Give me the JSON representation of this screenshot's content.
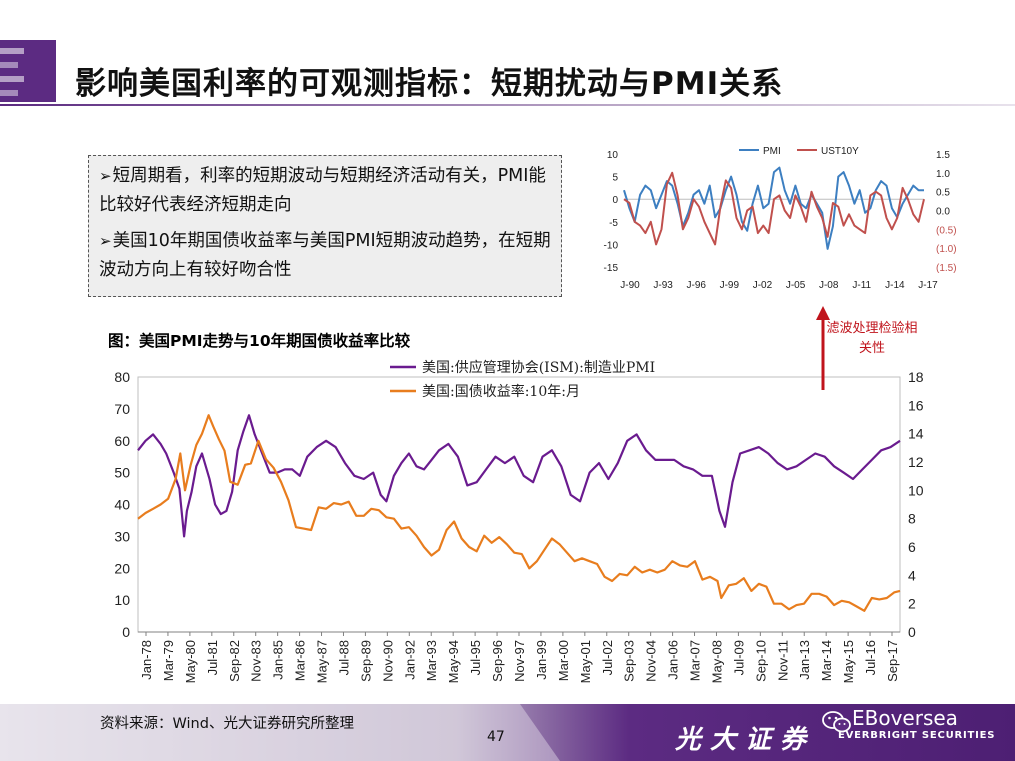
{
  "slide": {
    "title": "影响美国利率的可观测指标：短期扰动与PMI关系",
    "page_number": "47",
    "source": "资料来源：Wind、光大证券研究所整理"
  },
  "bullets": [
    "短周期看，利率的短期波动与短期经济活动有关，PMI能比较好代表经济短期走向",
    "美国10年期国债收益率与美国PMI短期波动趋势，在短期波动方向上有较好吻合性"
  ],
  "bullet_marker": "➢",
  "annotation": {
    "text": "滤波处理检验相关性",
    "color": "#c0141c"
  },
  "branding": {
    "cn_name": "光大证券",
    "en_name": "EBoversea",
    "en_sub": "EVERBRIGHT SECURITIES"
  },
  "colors": {
    "purple": "#6a1b8f",
    "orange": "#e87d1e",
    "blue": "#3d7fc1",
    "red": "#c0504d",
    "footer": "#5c2b82"
  },
  "chart_data": [
    {
      "id": "main",
      "type": "line",
      "title": "图：美国PMI走势与10年期国债收益率比较",
      "x_ticks": [
        "Jan-78",
        "Mar-79",
        "May-80",
        "Jul-81",
        "Sep-82",
        "Nov-83",
        "Jan-85",
        "Mar-86",
        "May-87",
        "Jul-88",
        "Sep-89",
        "Nov-90",
        "Jan-92",
        "Mar-93",
        "May-94",
        "Jul-95",
        "Sep-96",
        "Nov-97",
        "Jan-99",
        "Mar-00",
        "May-01",
        "Jul-02",
        "Sep-03",
        "Nov-04",
        "Jan-06",
        "Mar-07",
        "May-08",
        "Jul-09",
        "Sep-10",
        "Nov-11",
        "Jan-13",
        "Mar-14",
        "May-15",
        "Jul-16",
        "Sep-17"
      ],
      "x_range": [
        1978.0,
        2018.5
      ],
      "y_left": {
        "ticks": [
          0,
          10,
          20,
          30,
          40,
          50,
          60,
          70,
          80
        ],
        "ylim": [
          0,
          80
        ]
      },
      "y_right": {
        "ticks": [
          0,
          2,
          4,
          6,
          8,
          10,
          12,
          14,
          16,
          18
        ],
        "ylim": [
          0,
          18
        ]
      },
      "series": [
        {
          "name": "美国:供应管理协会(ISM):制造业PMI",
          "axis": "left",
          "x": [
            1978.0,
            1978.4,
            1978.8,
            1979.2,
            1979.5,
            1979.9,
            1980.2,
            1980.45,
            1980.6,
            1980.85,
            1981.1,
            1981.4,
            1981.8,
            1982.1,
            1982.4,
            1982.7,
            1983.0,
            1983.3,
            1983.6,
            1983.9,
            1984.2,
            1984.6,
            1985.0,
            1985.4,
            1985.8,
            1986.2,
            1986.6,
            1987.0,
            1987.5,
            1988.0,
            1988.5,
            1989.0,
            1989.5,
            1990.0,
            1990.5,
            1990.9,
            1991.2,
            1991.6,
            1992.0,
            1992.4,
            1992.8,
            1993.2,
            1993.6,
            1994.0,
            1994.5,
            1995.0,
            1995.5,
            1996.0,
            1996.5,
            1997.0,
            1997.5,
            1998.0,
            1998.5,
            1999.0,
            1999.5,
            2000.0,
            2000.5,
            2001.0,
            2001.5,
            2002.0,
            2002.5,
            2003.0,
            2003.5,
            2004.0,
            2004.5,
            2005.0,
            2005.5,
            2006.0,
            2006.5,
            2007.0,
            2007.5,
            2008.0,
            2008.5,
            2008.9,
            2009.2,
            2009.6,
            2010.0,
            2010.5,
            2011.0,
            2011.5,
            2012.0,
            2012.5,
            2013.0,
            2013.5,
            2014.0,
            2014.5,
            2015.0,
            2015.5,
            2016.0,
            2016.5,
            2017.0,
            2017.5,
            2018.0,
            2018.5
          ],
          "y": [
            57,
            60,
            62,
            59,
            56,
            50,
            45,
            30,
            38,
            44,
            52,
            56,
            48,
            40,
            37,
            38,
            44,
            57,
            63,
            68,
            62,
            56,
            50,
            50,
            51,
            51,
            49,
            55,
            58,
            60,
            58,
            53,
            49,
            48,
            50,
            43,
            41,
            49,
            53,
            56,
            52,
            51,
            54,
            57,
            59,
            55,
            46,
            47,
            51,
            55,
            53,
            55,
            49,
            47,
            55,
            57,
            52,
            43,
            41,
            50,
            53,
            48,
            53,
            60,
            62,
            57,
            54,
            54,
            54,
            52,
            51,
            49,
            49,
            38,
            33,
            47,
            56,
            57,
            58,
            56,
            53,
            51,
            52,
            54,
            56,
            55,
            52,
            50,
            48,
            51,
            54,
            57,
            58,
            60
          ]
        },
        {
          "name": "美国:国债收益率:10年:月",
          "axis": "right",
          "x": [
            1978.0,
            1978.4,
            1978.8,
            1979.2,
            1979.6,
            1980.0,
            1980.25,
            1980.5,
            1980.8,
            1981.1,
            1981.4,
            1981.75,
            1982.0,
            1982.3,
            1982.6,
            1982.9,
            1983.3,
            1983.7,
            1984.0,
            1984.4,
            1984.8,
            1985.2,
            1985.6,
            1986.0,
            1986.4,
            1986.8,
            1987.2,
            1987.6,
            1988.0,
            1988.4,
            1988.8,
            1989.2,
            1989.6,
            1990.0,
            1990.4,
            1990.8,
            1991.2,
            1991.6,
            1992.0,
            1992.4,
            1992.8,
            1993.2,
            1993.6,
            1994.0,
            1994.4,
            1994.8,
            1995.2,
            1995.6,
            1996.0,
            1996.4,
            1996.8,
            1997.2,
            1997.6,
            1998.0,
            1998.4,
            1998.8,
            1999.2,
            1999.6,
            2000.0,
            2000.4,
            2000.8,
            2001.2,
            2001.6,
            2002.0,
            2002.4,
            2002.8,
            2003.2,
            2003.6,
            2004.0,
            2004.4,
            2004.8,
            2005.2,
            2005.6,
            2006.0,
            2006.4,
            2006.8,
            2007.2,
            2007.6,
            2008.0,
            2008.4,
            2008.8,
            2009.0,
            2009.4,
            2009.8,
            2010.2,
            2010.6,
            2011.0,
            2011.4,
            2011.8,
            2012.2,
            2012.6,
            2013.0,
            2013.4,
            2013.8,
            2014.2,
            2014.6,
            2015.0,
            2015.4,
            2015.8,
            2016.2,
            2016.6,
            2017.0,
            2017.4,
            2017.8,
            2018.2,
            2018.5
          ],
          "y": [
            8.0,
            8.4,
            8.7,
            9.0,
            9.4,
            10.8,
            12.6,
            10.0,
            11.8,
            13.2,
            14.0,
            15.3,
            14.5,
            13.6,
            12.8,
            10.6,
            10.4,
            11.8,
            11.9,
            13.5,
            12.2,
            11.6,
            10.6,
            9.3,
            7.4,
            7.3,
            7.2,
            8.8,
            8.7,
            9.1,
            9.0,
            9.2,
            8.2,
            8.2,
            8.7,
            8.6,
            8.1,
            8.0,
            7.3,
            7.4,
            6.8,
            6.0,
            5.4,
            5.8,
            7.2,
            7.8,
            6.6,
            6.0,
            5.7,
            6.8,
            6.3,
            6.7,
            6.2,
            5.6,
            5.5,
            4.5,
            5.0,
            5.8,
            6.6,
            6.2,
            5.6,
            5.0,
            5.2,
            5.0,
            4.8,
            3.9,
            3.6,
            4.1,
            4.0,
            4.6,
            4.2,
            4.4,
            4.2,
            4.4,
            5.0,
            4.7,
            4.6,
            5.0,
            3.7,
            3.9,
            3.6,
            2.4,
            3.3,
            3.4,
            3.8,
            2.9,
            3.4,
            3.2,
            2.0,
            2.0,
            1.6,
            1.9,
            2.0,
            2.7,
            2.7,
            2.5,
            1.9,
            2.2,
            2.1,
            1.8,
            1.5,
            2.4,
            2.3,
            2.4,
            2.8,
            2.9
          ]
        }
      ],
      "colors": [
        "#6a1b8f",
        "#e87d1e"
      ]
    },
    {
      "id": "mini",
      "type": "line",
      "x_ticks": [
        "J-90",
        "J-93",
        "J-96",
        "J-99",
        "J-02",
        "J-05",
        "J-08",
        "J-11",
        "J-14",
        "J-17"
      ],
      "x_range": [
        1990.0,
        2018.0
      ],
      "y_left": {
        "ticks": [
          "10",
          "5",
          "0",
          "-5",
          "-10",
          "-15"
        ],
        "ylim": [
          -15,
          10
        ]
      },
      "y_right": {
        "ticks": [
          "1.5",
          "1.0",
          "0.5",
          "0.0",
          "(0.5)",
          "(1.0)",
          "(1.5)"
        ],
        "ylim": [
          -1.5,
          1.5
        ]
      },
      "series": [
        {
          "name": "PMI",
          "axis": "left",
          "x": [
            1990.0,
            1990.5,
            1991.0,
            1991.5,
            1992.0,
            1992.5,
            1993.0,
            1993.5,
            1994.0,
            1994.5,
            1995.0,
            1995.5,
            1996.0,
            1996.5,
            1997.0,
            1997.5,
            1998.0,
            1998.5,
            1999.0,
            1999.5,
            2000.0,
            2000.5,
            2001.0,
            2001.5,
            2002.0,
            2002.5,
            2003.0,
            2003.5,
            2004.0,
            2004.5,
            2005.0,
            2005.5,
            2006.0,
            2006.5,
            2007.0,
            2007.5,
            2008.0,
            2008.5,
            2009.0,
            2009.5,
            2010.0,
            2010.5,
            2011.0,
            2011.5,
            2012.0,
            2012.5,
            2013.0,
            2013.5,
            2014.0,
            2014.5,
            2015.0,
            2015.5,
            2016.0,
            2016.5,
            2017.0,
            2017.5,
            2018.0
          ],
          "y": [
            2,
            -2,
            -5,
            1,
            3,
            2,
            -2,
            1,
            4,
            3,
            -1,
            -6,
            -3,
            1,
            2,
            -1,
            3,
            -4,
            -2,
            2,
            5,
            1,
            -5,
            -7,
            -1,
            3,
            -2,
            -1,
            6,
            7,
            2,
            -1,
            3,
            -1,
            -2,
            1,
            -1,
            -3,
            -11,
            -6,
            5,
            6,
            3,
            -1,
            2,
            -3,
            -2,
            2,
            4,
            3,
            -2,
            -4,
            -1,
            1,
            3,
            2,
            2
          ]
        },
        {
          "name": "UST10Y",
          "axis": "right",
          "x": [
            1990.0,
            1990.5,
            1991.0,
            1991.5,
            1992.0,
            1992.5,
            1993.0,
            1993.5,
            1994.0,
            1994.5,
            1995.0,
            1995.5,
            1996.0,
            1996.5,
            1997.0,
            1997.5,
            1998.0,
            1998.5,
            1999.0,
            1999.5,
            2000.0,
            2000.5,
            2001.0,
            2001.5,
            2002.0,
            2002.5,
            2003.0,
            2003.5,
            2004.0,
            2004.5,
            2005.0,
            2005.5,
            2006.0,
            2006.5,
            2007.0,
            2007.5,
            2008.0,
            2008.5,
            2009.0,
            2009.5,
            2010.0,
            2010.5,
            2011.0,
            2011.5,
            2012.0,
            2012.5,
            2013.0,
            2013.5,
            2014.0,
            2014.5,
            2015.0,
            2015.5,
            2016.0,
            2016.5,
            2017.0,
            2017.5,
            2018.0
          ],
          "y": [
            0.3,
            0.2,
            -0.3,
            -0.4,
            -0.6,
            -0.3,
            -0.9,
            -0.5,
            0.7,
            1.0,
            0.4,
            -0.5,
            -0.2,
            0.3,
            0.1,
            -0.3,
            -0.6,
            -0.9,
            0.1,
            0.8,
            0.6,
            -0.2,
            -0.5,
            0.0,
            0.1,
            -0.6,
            -0.4,
            -0.6,
            0.3,
            0.4,
            0.0,
            -0.2,
            0.4,
            0.1,
            -0.3,
            0.5,
            0.1,
            -0.2,
            -0.7,
            0.2,
            0.1,
            -0.4,
            -0.1,
            -0.4,
            -0.5,
            -0.6,
            0.4,
            0.5,
            0.4,
            -0.2,
            -0.5,
            -0.2,
            0.6,
            0.3,
            -0.1,
            -0.3,
            0.3
          ]
        }
      ],
      "colors": [
        "#3d7fc1",
        "#c0504d"
      ]
    }
  ]
}
